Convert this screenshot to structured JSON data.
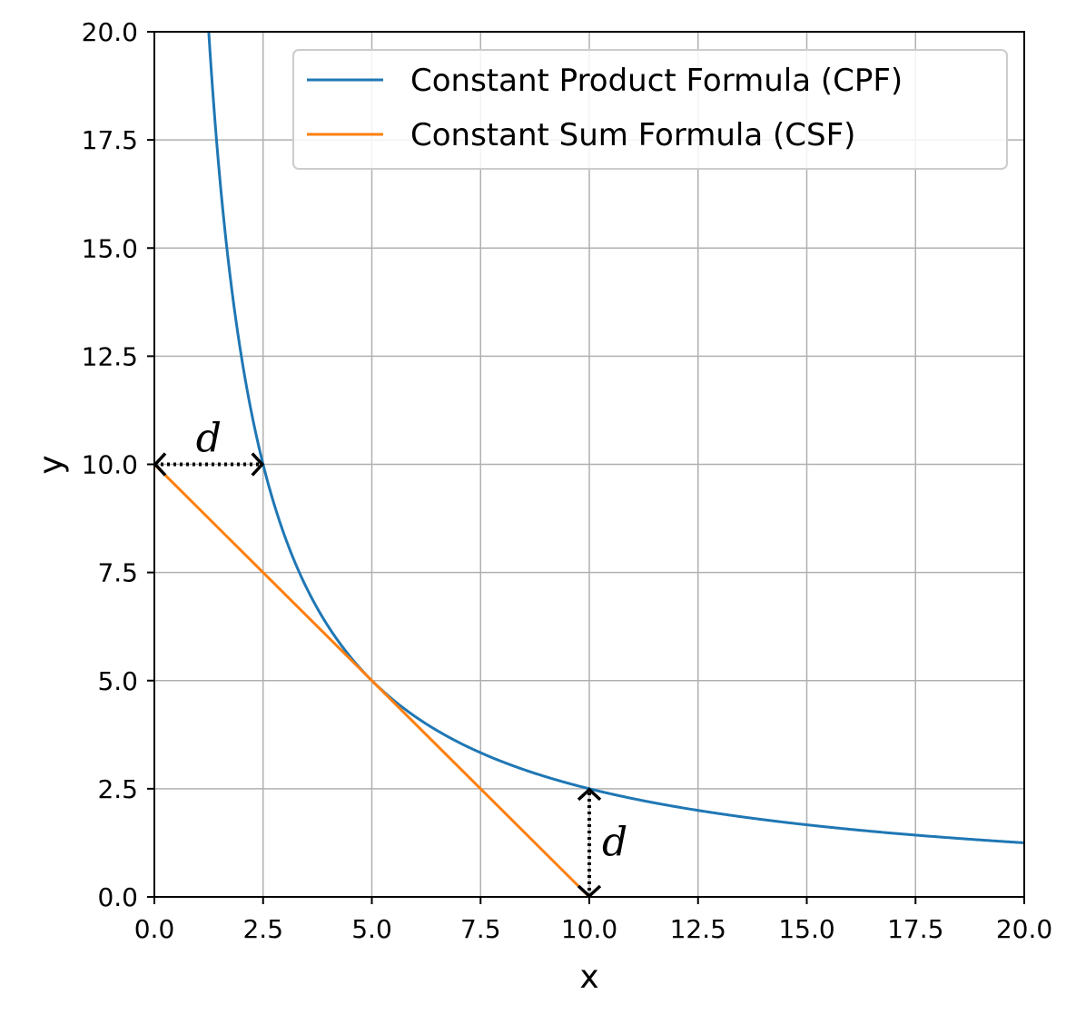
{
  "chart_data": {
    "type": "line",
    "xlabel": "x",
    "ylabel": "y",
    "xlim": [
      0,
      20
    ],
    "ylim": [
      0,
      20
    ],
    "xticks": [
      "0.0",
      "2.5",
      "5.0",
      "7.5",
      "10.0",
      "12.5",
      "15.0",
      "17.5",
      "20.0"
    ],
    "yticks": [
      "0.0",
      "2.5",
      "5.0",
      "7.5",
      "10.0",
      "12.5",
      "15.0",
      "17.5",
      "20.0"
    ],
    "grid": true,
    "legend_position": "top-right",
    "series": [
      {
        "name": "Constant Product Formula (CPF)",
        "color": "#1f77b4",
        "x": [
          1.25,
          1.5,
          1.75,
          2.0,
          2.25,
          2.5,
          3.0,
          3.5,
          4.0,
          4.5,
          5.0,
          6.0,
          7.0,
          8.0,
          9.0,
          10.0,
          12.0,
          14.0,
          16.0,
          18.0,
          20.0
        ],
        "y": [
          20.0,
          16.67,
          14.29,
          12.5,
          11.11,
          10.0,
          8.33,
          7.14,
          6.25,
          5.56,
          5.0,
          4.17,
          3.57,
          3.13,
          2.78,
          2.5,
          2.08,
          1.79,
          1.56,
          1.39,
          1.25
        ]
      },
      {
        "name": "Constant Sum Formula (CSF)",
        "color": "#ff7f0e",
        "x": [
          0,
          10
        ],
        "y": [
          10,
          0
        ]
      }
    ],
    "annotations": [
      {
        "label": "d",
        "orientation": "horizontal",
        "from": [
          0,
          10
        ],
        "to": [
          2.5,
          10
        ]
      },
      {
        "label": "d",
        "orientation": "vertical",
        "from": [
          10,
          0
        ],
        "to": [
          10,
          2.5
        ]
      }
    ]
  }
}
